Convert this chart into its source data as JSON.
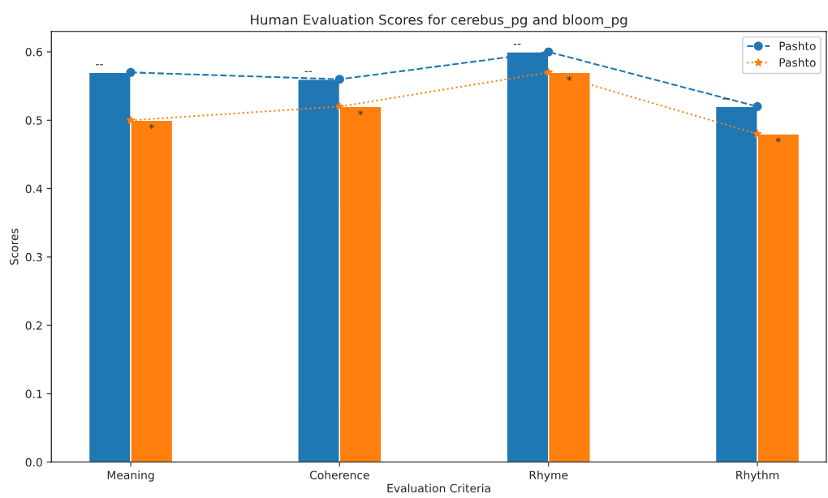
{
  "chart_data": {
    "type": "bar",
    "title": "Human Evaluation Scores for cerebus_pg and bloom_pg",
    "xlabel": "Evaluation Criteria",
    "ylabel": "Scores",
    "categories": [
      "Meaning",
      "Coherence",
      "Rhyme",
      "Rhythm"
    ],
    "series": [
      {
        "color": "#1f77b4",
        "values": [
          0.57,
          0.56,
          0.6,
          0.52
        ]
      },
      {
        "color": "#ff7f0e",
        "values": [
          0.5,
          0.52,
          0.57,
          0.48
        ]
      },
      {
        "type": "line",
        "name": "Pashto",
        "color": "#1f77b4",
        "values": [
          0.57,
          0.56,
          0.6,
          0.52
        ],
        "marker": "circle",
        "line_style": "dashed"
      },
      {
        "type": "line",
        "name": "Pashto",
        "color": "#ff7f0e",
        "values": [
          0.5,
          0.52,
          0.57,
          0.48
        ],
        "marker": "star",
        "line_style": "dotted"
      }
    ],
    "annotations": [
      {
        "text": "--",
        "x": "Meaning",
        "y": 0.57
      },
      {
        "text": "--",
        "x": "Coherence",
        "y": 0.56
      },
      {
        "text": "--",
        "x": "Rhyme",
        "y": 0.6
      },
      {
        "text": "--",
        "x": "Rhythm",
        "y": 0.52
      },
      {
        "text": "*",
        "x": "Meaning",
        "y": 0.5
      },
      {
        "text": "*",
        "x": "Coherence",
        "y": 0.52
      },
      {
        "text": "*",
        "x": "Rhyme",
        "y": 0.57
      },
      {
        "text": "*",
        "x": "Rhythm",
        "y": 0.48
      }
    ],
    "ylim": [
      0,
      0.63
    ],
    "yticks": [
      {
        "value": 0,
        "label": "0.0"
      },
      0.1,
      0.2,
      0.3,
      0.4,
      0.5,
      0.6
    ],
    "legend": "top right",
    "grid": false
  }
}
